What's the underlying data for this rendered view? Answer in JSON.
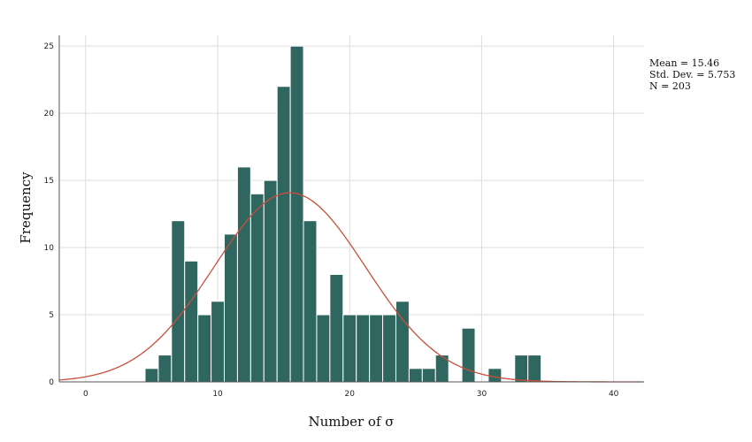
{
  "chart_data": {
    "type": "bar",
    "subtype": "histogram",
    "xlabel": "Number of σ",
    "ylabel": "Frequency",
    "xlim": [
      -2,
      42.3
    ],
    "ylim": [
      0,
      25.8
    ],
    "x_ticks": [
      0,
      10,
      20,
      30,
      40
    ],
    "y_ticks": [
      0,
      5,
      10,
      15,
      20,
      25
    ],
    "grid": true,
    "bin_width": 1,
    "bins": [
      {
        "x": 5,
        "count": 1
      },
      {
        "x": 6,
        "count": 2
      },
      {
        "x": 7,
        "count": 12
      },
      {
        "x": 8,
        "count": 9
      },
      {
        "x": 9,
        "count": 5
      },
      {
        "x": 10,
        "count": 6
      },
      {
        "x": 11,
        "count": 11
      },
      {
        "x": 12,
        "count": 16
      },
      {
        "x": 13,
        "count": 14
      },
      {
        "x": 14,
        "count": 15
      },
      {
        "x": 15,
        "count": 22
      },
      {
        "x": 16,
        "count": 25
      },
      {
        "x": 17,
        "count": 12
      },
      {
        "x": 18,
        "count": 5
      },
      {
        "x": 19,
        "count": 8
      },
      {
        "x": 20,
        "count": 5
      },
      {
        "x": 21,
        "count": 5
      },
      {
        "x": 22,
        "count": 5
      },
      {
        "x": 23,
        "count": 5
      },
      {
        "x": 24,
        "count": 6
      },
      {
        "x": 25,
        "count": 1
      },
      {
        "x": 26,
        "count": 1
      },
      {
        "x": 27,
        "count": 2
      },
      {
        "x": 29,
        "count": 4
      },
      {
        "x": 31,
        "count": 1
      },
      {
        "x": 33,
        "count": 2
      },
      {
        "x": 34,
        "count": 2
      }
    ],
    "normal_curve": {
      "mean": 15.46,
      "sd": 5.753,
      "n": 203
    },
    "stats": [
      "Mean = 15.46",
      "Std. Dev. = 5.753",
      "N = 203"
    ],
    "colors": {
      "bar": "#2f6660",
      "bar_edge": "#ffffff",
      "curve": "#c8503a",
      "grid": "#dddddd",
      "axis": "#555555"
    }
  }
}
